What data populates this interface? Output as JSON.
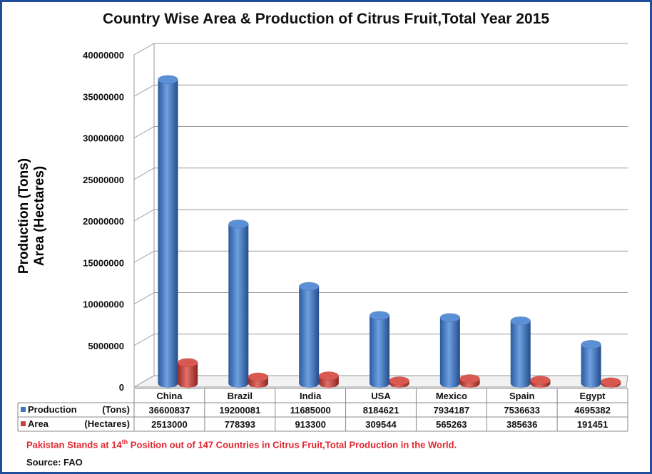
{
  "chart_data": {
    "type": "bar",
    "title": "Country Wise Area & Production of Citrus Fruit,Total Year 2015",
    "ylabel_line1": "Production (Tons)",
    "ylabel_line2": "Area (Hectares)",
    "ylim": [
      0,
      40000000
    ],
    "yticks": [
      "0",
      "5000000",
      "10000000",
      "15000000",
      "20000000",
      "25000000",
      "30000000",
      "35000000",
      "40000000"
    ],
    "categories": [
      "China",
      "Brazil",
      "India",
      "USA",
      "Mexico",
      "Spain",
      "Egypt"
    ],
    "series": [
      {
        "name": "Production",
        "unit_label": "(Tons)",
        "color": "#3f74c2",
        "values": [
          36600837,
          19200081,
          11685000,
          8184621,
          7934187,
          7536633,
          4695382
        ]
      },
      {
        "name": "Area",
        "unit_label": "(Hectares)",
        "color": "#c9403a",
        "values": [
          2513000,
          778393,
          913300,
          309544,
          565263,
          385636,
          191451
        ]
      }
    ],
    "grid": true,
    "legend": "table-bottom"
  },
  "note_prefix": "Pakistan Stands at 14",
  "note_sup": "th",
  "note_suffix": " Position out of 147 Countries in Citrus Fruit,Total Production in the World.",
  "source": "Source: FAO"
}
